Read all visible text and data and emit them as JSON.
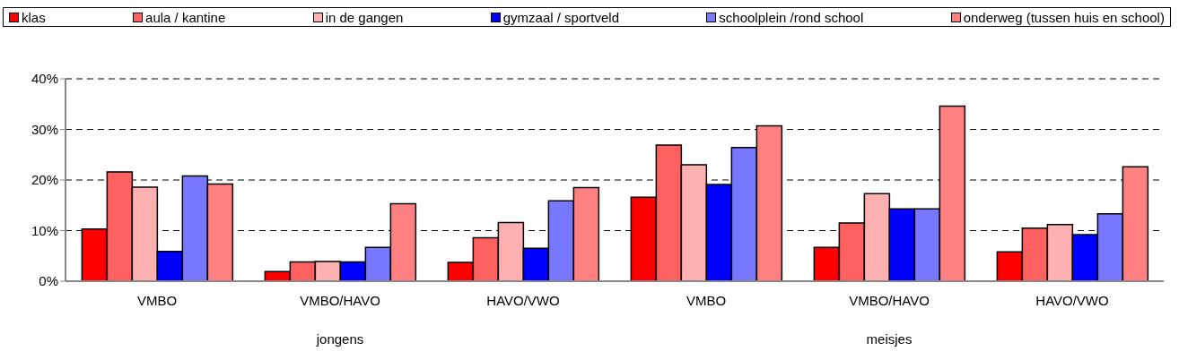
{
  "chart_data": {
    "type": "bar",
    "categories": [
      "VMBO",
      "VMBO/HAVO",
      "HAVO/VWO",
      "VMBO",
      "VMBO/HAVO",
      "HAVO/VWO"
    ],
    "series": [
      {
        "name": "klas",
        "color": "#ff0000",
        "values": [
          10.3,
          1.9,
          3.7,
          16.6,
          6.7,
          5.8
        ]
      },
      {
        "name": "aula / kantine",
        "color": "#ff6060",
        "values": [
          21.6,
          3.8,
          8.6,
          26.9,
          11.5,
          10.5
        ]
      },
      {
        "name": "in de gangen",
        "color": "#ffb0b0",
        "values": [
          18.6,
          3.9,
          11.6,
          23.0,
          17.3,
          11.2
        ]
      },
      {
        "name": "gymzaal / sportveld",
        "color": "#0000ff",
        "values": [
          5.9,
          3.8,
          6.5,
          19.1,
          14.3,
          9.2
        ]
      },
      {
        "name": "schoolplein /rond school",
        "color": "#7878ff",
        "values": [
          20.8,
          6.7,
          15.9,
          26.4,
          14.3,
          13.3
        ]
      },
      {
        "name": "onderweg (tussen huis en school)",
        "color": "#ff8080",
        "values": [
          19.2,
          15.3,
          18.5,
          30.7,
          34.6,
          22.6
        ]
      }
    ],
    "annotations": [
      "jongens",
      "meisjes"
    ],
    "ylim": [
      0,
      40
    ],
    "yticks": [
      {
        "value": 0,
        "label": "0%"
      },
      {
        "value": 10,
        "label": "10%"
      },
      {
        "value": 20,
        "label": "20%"
      },
      {
        "value": 30,
        "label": "30%"
      },
      {
        "value": 40,
        "label": "40%"
      }
    ],
    "grid": "y",
    "legend": "top"
  }
}
